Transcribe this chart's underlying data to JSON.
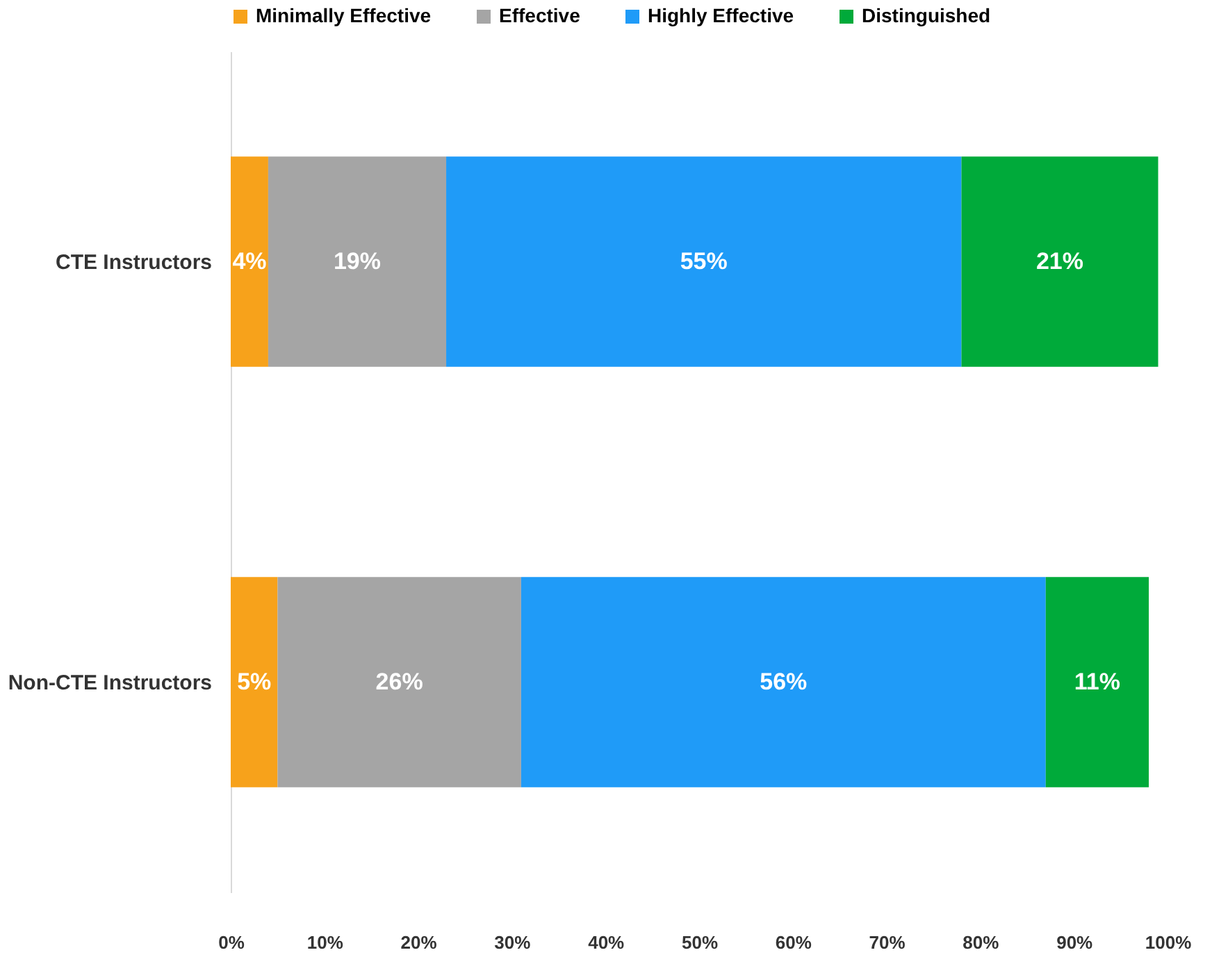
{
  "chart_data": {
    "type": "bar",
    "orientation": "horizontal",
    "stacked": true,
    "categories": [
      "CTE Instructors",
      "Non-CTE Instructors"
    ],
    "series": [
      {
        "name": "Minimally Effective",
        "color": "#f7a21b",
        "values": [
          4,
          5
        ],
        "value_labels": [
          "4%",
          "5%"
        ]
      },
      {
        "name": "Effective",
        "color": "#a5a5a5",
        "values": [
          19,
          26
        ],
        "value_labels": [
          "19%",
          "26%"
        ]
      },
      {
        "name": "Highly Effective",
        "color": "#1f9bf8",
        "values": [
          55,
          56
        ],
        "value_labels": [
          "55%",
          "56%"
        ]
      },
      {
        "name": "Distinguished",
        "color": "#00aa3a",
        "values": [
          21,
          11
        ],
        "value_labels": [
          "21%",
          "11%"
        ]
      }
    ],
    "xlim": [
      0,
      100
    ],
    "xticks": [
      {
        "value": 0,
        "label": "0%"
      },
      {
        "value": 10,
        "label": "10%"
      },
      {
        "value": 20,
        "label": "20%"
      },
      {
        "value": 30,
        "label": "30%"
      },
      {
        "value": 40,
        "label": "40%"
      },
      {
        "value": 50,
        "label": "50%"
      },
      {
        "value": 60,
        "label": "60%"
      },
      {
        "value": 70,
        "label": "70%"
      },
      {
        "value": 80,
        "label": "80%"
      },
      {
        "value": 90,
        "label": "90%"
      },
      {
        "value": 100,
        "label": "100%"
      }
    ],
    "grid": false,
    "legend": "top"
  }
}
